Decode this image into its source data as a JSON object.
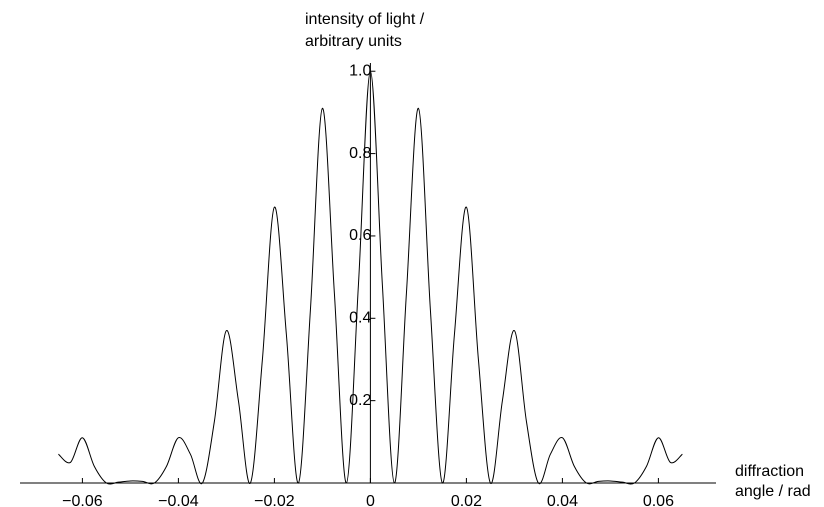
{
  "chart_data": {
    "type": "line",
    "ylabel": [
      "intensity of light /",
      "arbitrary units"
    ],
    "xlabel": [
      "diffraction",
      "angle / rad"
    ],
    "x": [
      -0.065,
      -0.0625,
      -0.06,
      -0.0575,
      -0.055,
      -0.0525,
      -0.05,
      -0.0475,
      -0.045,
      -0.0425,
      -0.04,
      -0.0375,
      -0.035,
      -0.0325,
      -0.03,
      -0.0275,
      -0.025,
      -0.0225,
      -0.02,
      -0.0175,
      -0.015,
      -0.0125,
      -0.01,
      -0.0075,
      -0.005,
      -0.0025,
      0,
      0.0025,
      0.005,
      0.0075,
      0.01,
      0.0125,
      0.015,
      0.0175,
      0.02,
      0.0225,
      0.025,
      0.0275,
      0.03,
      0.0325,
      0.035,
      0.0375,
      0.04,
      0.0425,
      0.045,
      0.0475,
      0.05,
      0.0525,
      0.055,
      0.0575,
      0.06,
      0.0625,
      0.065
    ],
    "series": [
      {
        "color": "#000000",
        "values": [
          0.07,
          0.05,
          0.11,
          0.04,
          0,
          0.002,
          0.005,
          0.004,
          0,
          0.04,
          0.11,
          0.07,
          0,
          0.15,
          0.37,
          0.2,
          0,
          0.3,
          0.67,
          0.36,
          0,
          0.42,
          0.91,
          0.46,
          0,
          0.48,
          1.0,
          0.48,
          0,
          0.46,
          0.91,
          0.42,
          0,
          0.36,
          0.67,
          0.3,
          0,
          0.2,
          0.37,
          0.15,
          0,
          0.07,
          0.11,
          0.04,
          0,
          0.004,
          0.005,
          0.002,
          0,
          0.04,
          0.11,
          0.05,
          0.07
        ]
      }
    ],
    "xlim": [
      -0.073,
      0.072
    ],
    "ylim": [
      0,
      1.02
    ],
    "xticks": [
      {
        "value": -0.06,
        "label": "−0.06"
      },
      {
        "value": -0.04,
        "label": "−0.04"
      },
      {
        "value": -0.02,
        "label": "−0.02"
      },
      0,
      0.02,
      0.04,
      0.06
    ],
    "yticks": [
      0.2,
      0.4,
      0.6,
      0.8,
      {
        "value": 1,
        "label": "1.0"
      }
    ]
  }
}
